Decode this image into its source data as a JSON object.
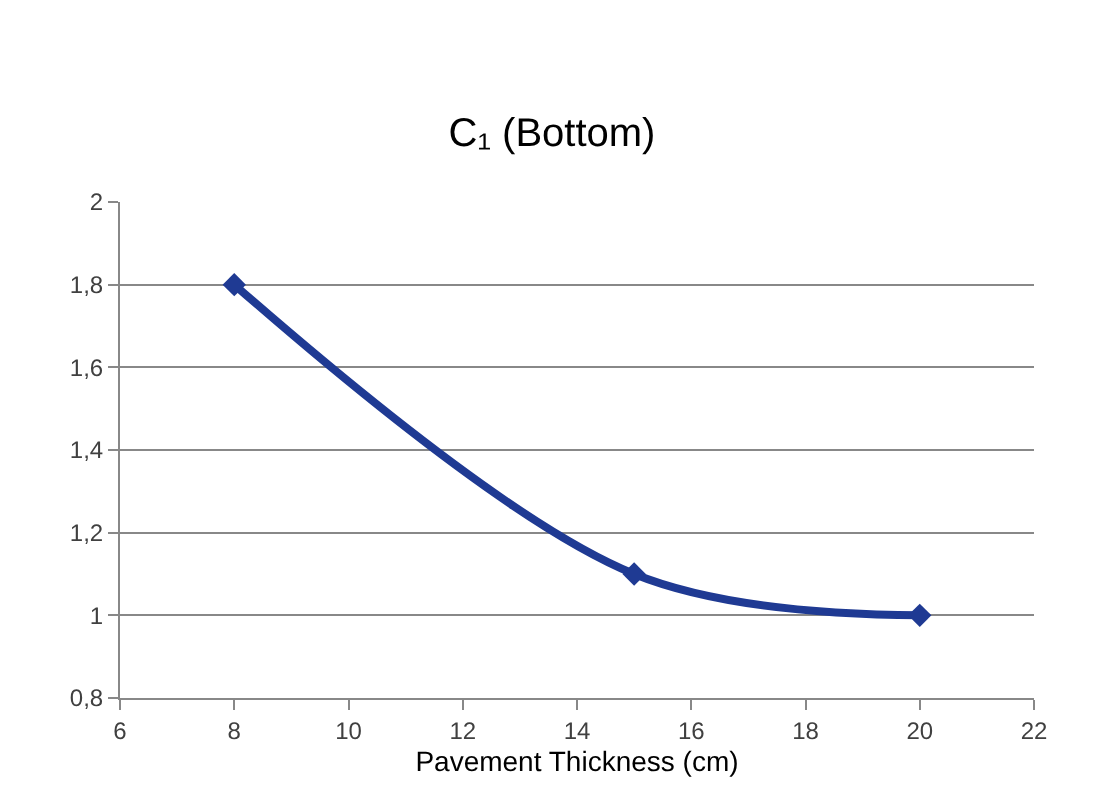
{
  "chart_data": {
    "type": "line",
    "title": "C₁ (Bottom)",
    "xlabel": "Pavement Thickness (cm)",
    "x": [
      8,
      15,
      20
    ],
    "series": [
      {
        "color": "#1f3a93",
        "values": [
          1.8,
          1.1,
          1.0
        ]
      }
    ],
    "xlim": [
      6,
      22
    ],
    "xticks": [
      6,
      8,
      10,
      12,
      14,
      16,
      18,
      20,
      22
    ],
    "ylim": [
      0.8,
      2
    ],
    "yticks": [
      {
        "value": 0.8,
        "label": "0,8"
      },
      1,
      {
        "value": 1.2,
        "label": "1,2"
      },
      {
        "value": 1.4,
        "label": "1,4"
      },
      {
        "value": 1.6,
        "label": "1,6"
      },
      {
        "value": 1.8,
        "label": "1,8"
      },
      2
    ],
    "grid": "y",
    "marker": "diamond",
    "line_style": "solid"
  }
}
